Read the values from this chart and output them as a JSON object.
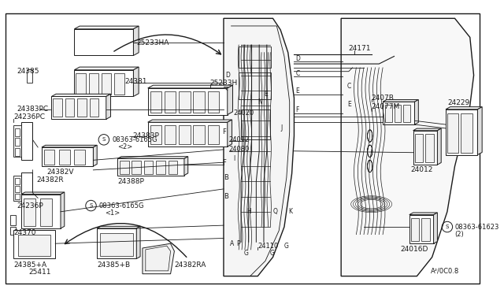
{
  "bg_color": "#ffffff",
  "line_color": "#1a1a1a",
  "fill_light": "#f2f2f2",
  "fill_mid": "#e0e0e0",
  "border": [
    0.012,
    0.015,
    0.988,
    0.972
  ]
}
